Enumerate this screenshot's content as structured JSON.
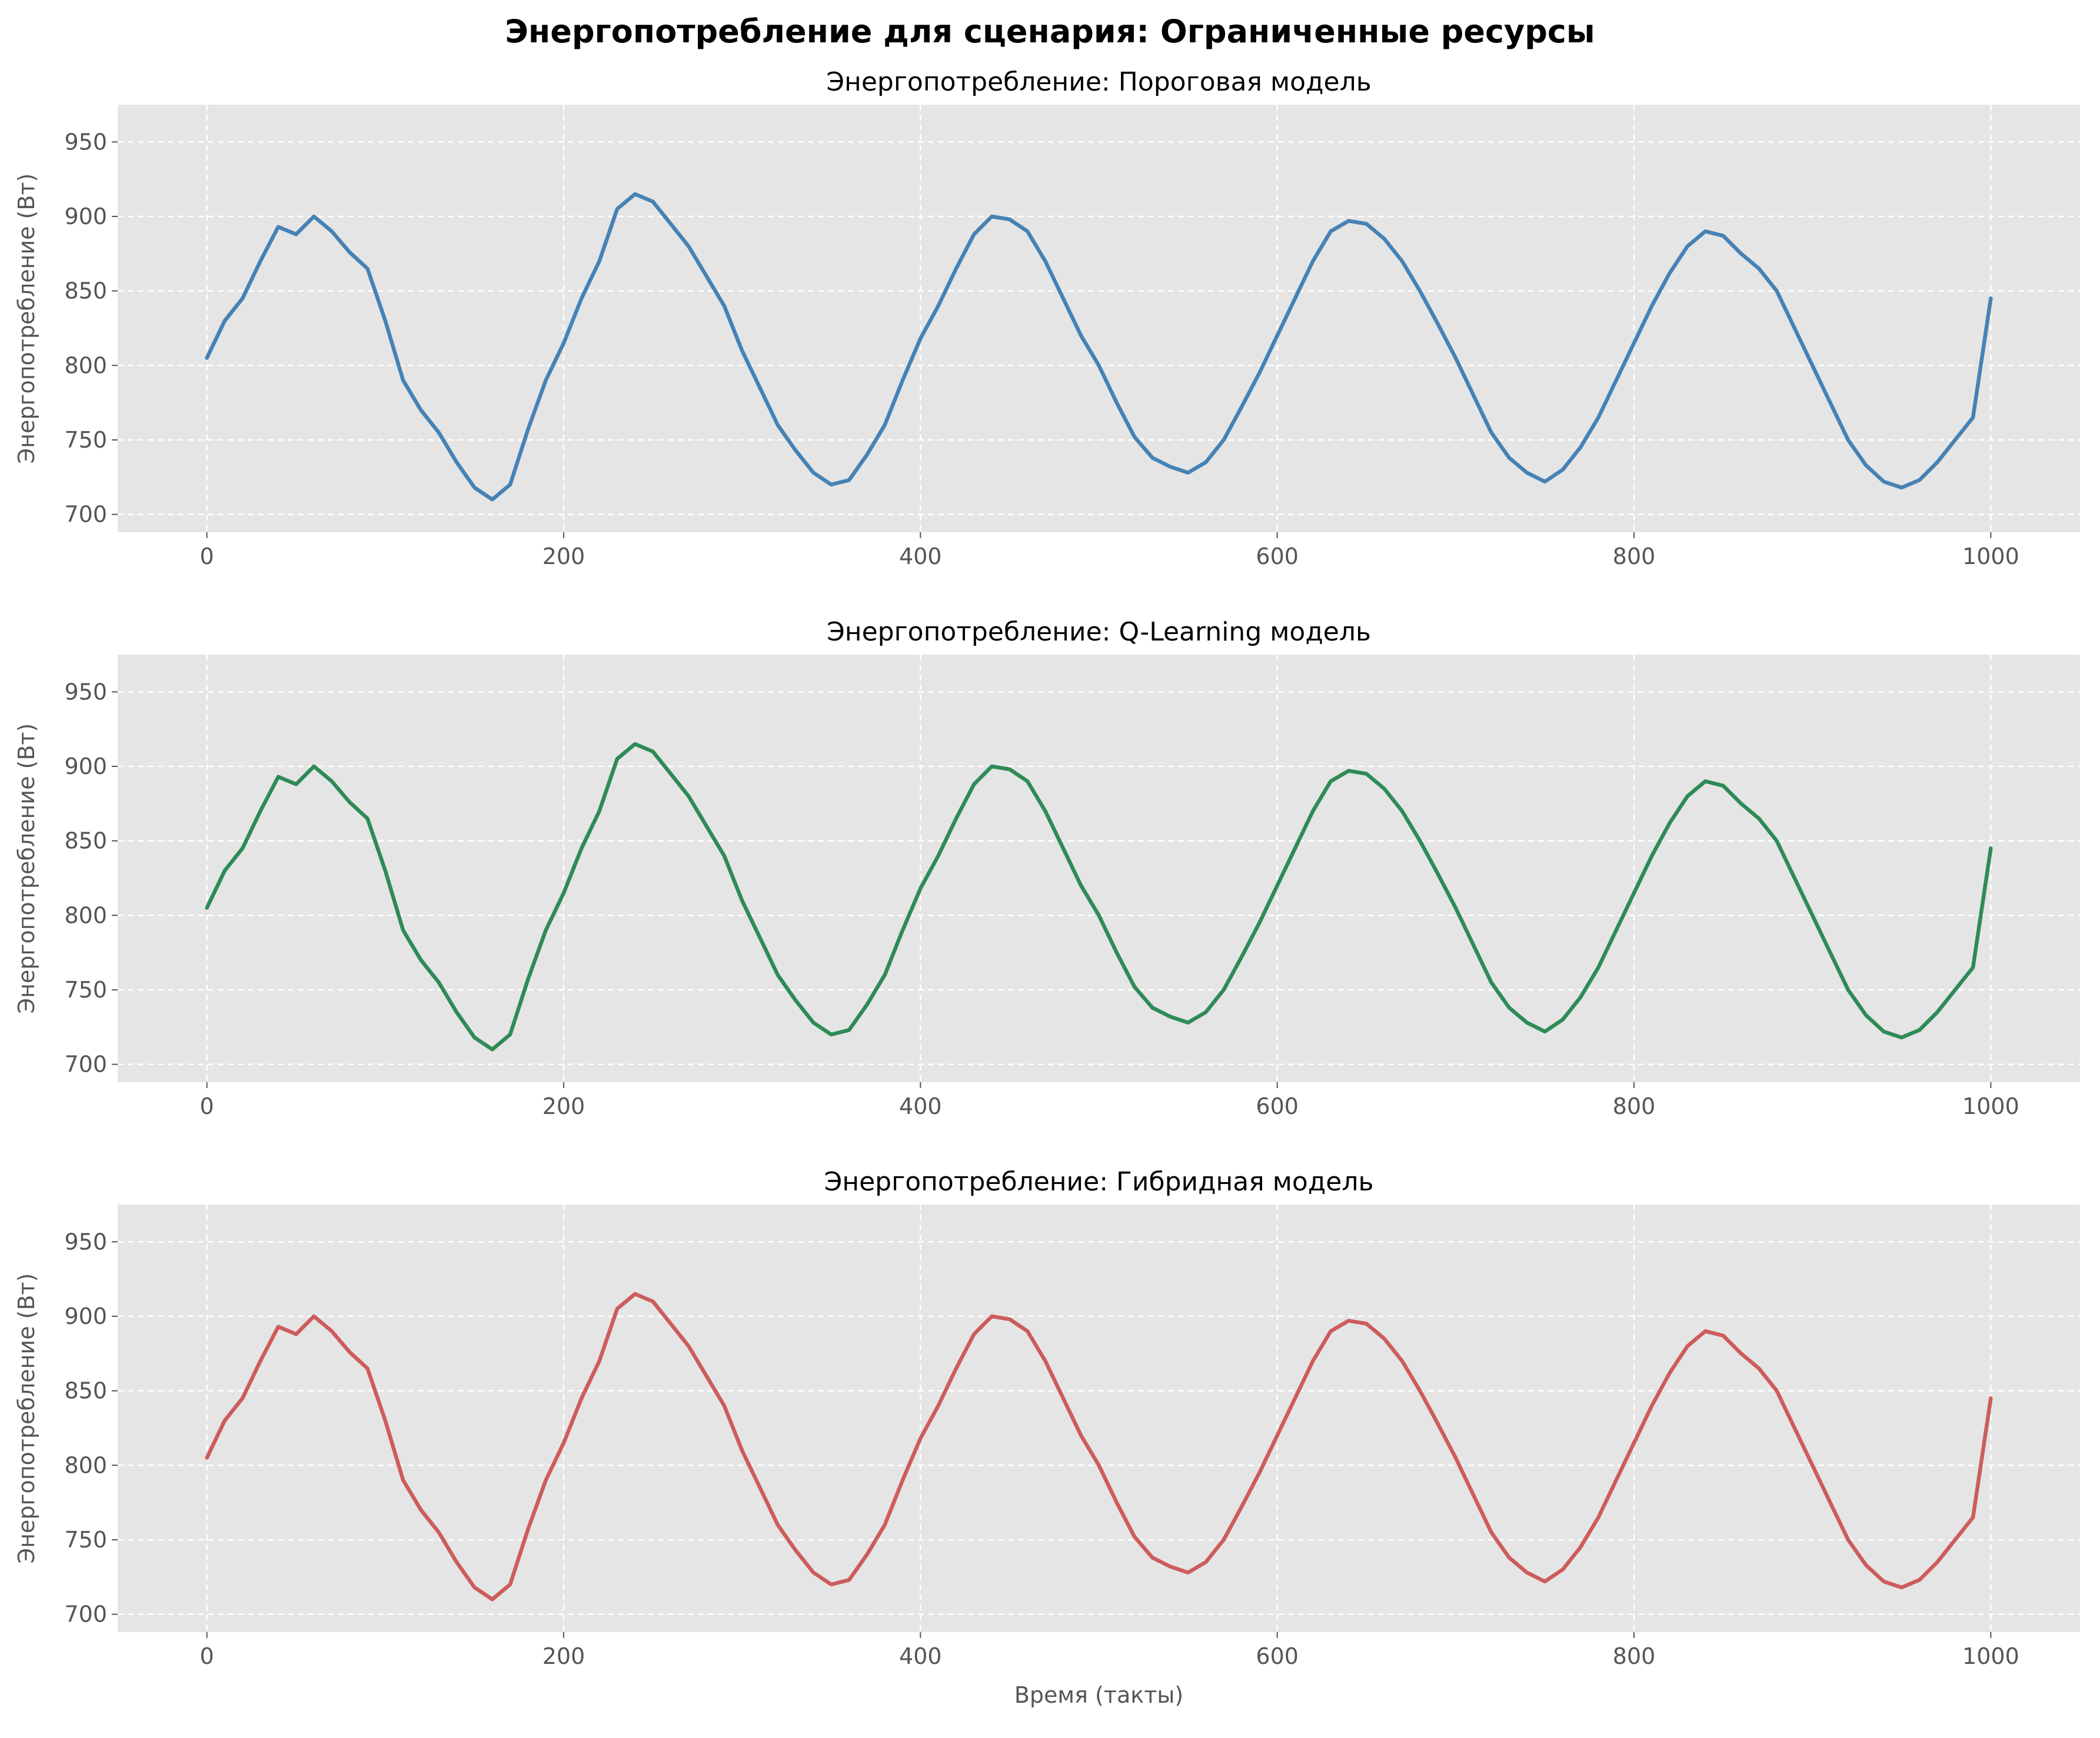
{
  "figure": {
    "suptitle": "Энергопотребление для сценария: Ограниченные ресурсы"
  },
  "chart_data": [
    {
      "type": "line",
      "title": "Энергопотребление: Пороговая модель",
      "xlabel": "",
      "ylabel": "Энергопотребление (Вт)",
      "xlim": [
        -50,
        1050
      ],
      "ylim": [
        688,
        975
      ],
      "xticks": [
        0,
        200,
        400,
        600,
        800,
        1000
      ],
      "yticks": [
        700,
        750,
        800,
        850,
        900,
        950
      ],
      "grid": true,
      "color": "#4682b4",
      "series": [
        {
          "x": [
            0,
            10,
            20,
            30,
            40,
            50,
            60,
            70,
            80,
            90,
            100,
            110,
            120,
            130,
            140,
            150,
            160,
            170,
            180,
            190,
            200,
            210,
            220,
            230,
            240,
            250,
            260,
            270,
            280,
            290,
            300,
            310,
            320,
            330,
            340,
            350,
            360,
            370,
            380,
            390,
            400,
            410,
            420,
            430,
            440,
            450,
            460,
            470,
            480,
            490,
            500,
            510,
            520,
            530,
            540,
            550,
            560,
            570,
            580,
            590,
            600,
            610,
            620,
            630,
            640,
            650,
            660,
            670,
            680,
            690,
            700,
            710,
            720,
            730,
            740,
            750,
            760,
            770,
            780,
            790,
            800,
            810,
            820,
            830,
            840,
            850,
            860,
            870,
            880,
            890,
            900,
            910,
            920,
            930,
            940,
            950,
            960,
            970,
            980,
            990,
            1000
          ],
          "values": [
            805,
            830,
            845,
            870,
            893,
            888,
            900,
            890,
            876,
            865,
            830,
            790,
            770,
            755,
            735,
            718,
            710,
            720,
            757,
            790,
            815,
            845,
            870,
            905,
            915,
            910,
            895,
            880,
            860,
            840,
            810,
            785,
            760,
            743,
            728,
            720,
            723,
            740,
            760,
            790,
            818,
            840,
            865,
            888,
            900,
            898,
            890,
            870,
            845,
            820,
            800,
            775,
            752,
            738,
            732,
            728,
            735,
            750,
            772,
            795,
            820,
            845,
            870,
            890,
            897,
            895,
            885,
            870,
            850,
            828,
            805,
            780,
            755,
            738,
            728,
            722,
            730,
            745,
            765,
            790,
            815,
            840,
            862,
            880,
            890,
            887,
            875,
            865,
            850,
            825,
            800,
            775,
            750,
            733,
            722,
            718,
            723,
            735,
            750,
            765,
            845
          ]
        }
      ]
    },
    {
      "type": "line",
      "title": "Энергопотребление: Q-Learning модель",
      "xlabel": "",
      "ylabel": "Энергопотребление (Вт)",
      "xlim": [
        -50,
        1050
      ],
      "ylim": [
        688,
        975
      ],
      "xticks": [
        0,
        200,
        400,
        600,
        800,
        1000
      ],
      "yticks": [
        700,
        750,
        800,
        850,
        900,
        950
      ],
      "grid": true,
      "color": "#2e8b57",
      "series": [
        {
          "x": [
            0,
            10,
            20,
            30,
            40,
            50,
            60,
            70,
            80,
            90,
            100,
            110,
            120,
            130,
            140,
            150,
            160,
            170,
            180,
            190,
            200,
            210,
            220,
            230,
            240,
            250,
            260,
            270,
            280,
            290,
            300,
            310,
            320,
            330,
            340,
            350,
            360,
            370,
            380,
            390,
            400,
            410,
            420,
            430,
            440,
            450,
            460,
            470,
            480,
            490,
            500,
            510,
            520,
            530,
            540,
            550,
            560,
            570,
            580,
            590,
            600,
            610,
            620,
            630,
            640,
            650,
            660,
            670,
            680,
            690,
            700,
            710,
            720,
            730,
            740,
            750,
            760,
            770,
            780,
            790,
            800,
            810,
            820,
            830,
            840,
            850,
            860,
            870,
            880,
            890,
            900,
            910,
            920,
            930,
            940,
            950,
            960,
            970,
            980,
            990,
            1000
          ],
          "values": [
            805,
            830,
            845,
            870,
            893,
            888,
            900,
            890,
            876,
            865,
            830,
            790,
            770,
            755,
            735,
            718,
            710,
            720,
            757,
            790,
            815,
            845,
            870,
            905,
            915,
            910,
            895,
            880,
            860,
            840,
            810,
            785,
            760,
            743,
            728,
            720,
            723,
            740,
            760,
            790,
            818,
            840,
            865,
            888,
            900,
            898,
            890,
            870,
            845,
            820,
            800,
            775,
            752,
            738,
            732,
            728,
            735,
            750,
            772,
            795,
            820,
            845,
            870,
            890,
            897,
            895,
            885,
            870,
            850,
            828,
            805,
            780,
            755,
            738,
            728,
            722,
            730,
            745,
            765,
            790,
            815,
            840,
            862,
            880,
            890,
            887,
            875,
            865,
            850,
            825,
            800,
            775,
            750,
            733,
            722,
            718,
            723,
            735,
            750,
            765,
            845
          ]
        }
      ]
    },
    {
      "type": "line",
      "title": "Энергопотребление: Гибридная модель",
      "xlabel": "Время (такты)",
      "ylabel": "Энергопотребление (Вт)",
      "xlim": [
        -50,
        1050
      ],
      "ylim": [
        688,
        975
      ],
      "xticks": [
        0,
        200,
        400,
        600,
        800,
        1000
      ],
      "yticks": [
        700,
        750,
        800,
        850,
        900,
        950
      ],
      "grid": true,
      "color": "#cd5c5c",
      "series": [
        {
          "x": [
            0,
            10,
            20,
            30,
            40,
            50,
            60,
            70,
            80,
            90,
            100,
            110,
            120,
            130,
            140,
            150,
            160,
            170,
            180,
            190,
            200,
            210,
            220,
            230,
            240,
            250,
            260,
            270,
            280,
            290,
            300,
            310,
            320,
            330,
            340,
            350,
            360,
            370,
            380,
            390,
            400,
            410,
            420,
            430,
            440,
            450,
            460,
            470,
            480,
            490,
            500,
            510,
            520,
            530,
            540,
            550,
            560,
            570,
            580,
            590,
            600,
            610,
            620,
            630,
            640,
            650,
            660,
            670,
            680,
            690,
            700,
            710,
            720,
            730,
            740,
            750,
            760,
            770,
            780,
            790,
            800,
            810,
            820,
            830,
            840,
            850,
            860,
            870,
            880,
            890,
            900,
            910,
            920,
            930,
            940,
            950,
            960,
            970,
            980,
            990,
            1000
          ],
          "values": [
            805,
            830,
            845,
            870,
            893,
            888,
            900,
            890,
            876,
            865,
            830,
            790,
            770,
            755,
            735,
            718,
            710,
            720,
            757,
            790,
            815,
            845,
            870,
            905,
            915,
            910,
            895,
            880,
            860,
            840,
            810,
            785,
            760,
            743,
            728,
            720,
            723,
            740,
            760,
            790,
            818,
            840,
            865,
            888,
            900,
            898,
            890,
            870,
            845,
            820,
            800,
            775,
            752,
            738,
            732,
            728,
            735,
            750,
            772,
            795,
            820,
            845,
            870,
            890,
            897,
            895,
            885,
            870,
            850,
            828,
            805,
            780,
            755,
            738,
            728,
            722,
            730,
            745,
            765,
            790,
            815,
            840,
            862,
            880,
            890,
            887,
            875,
            865,
            850,
            825,
            800,
            775,
            750,
            733,
            722,
            718,
            723,
            735,
            750,
            765,
            845
          ]
        }
      ]
    }
  ]
}
